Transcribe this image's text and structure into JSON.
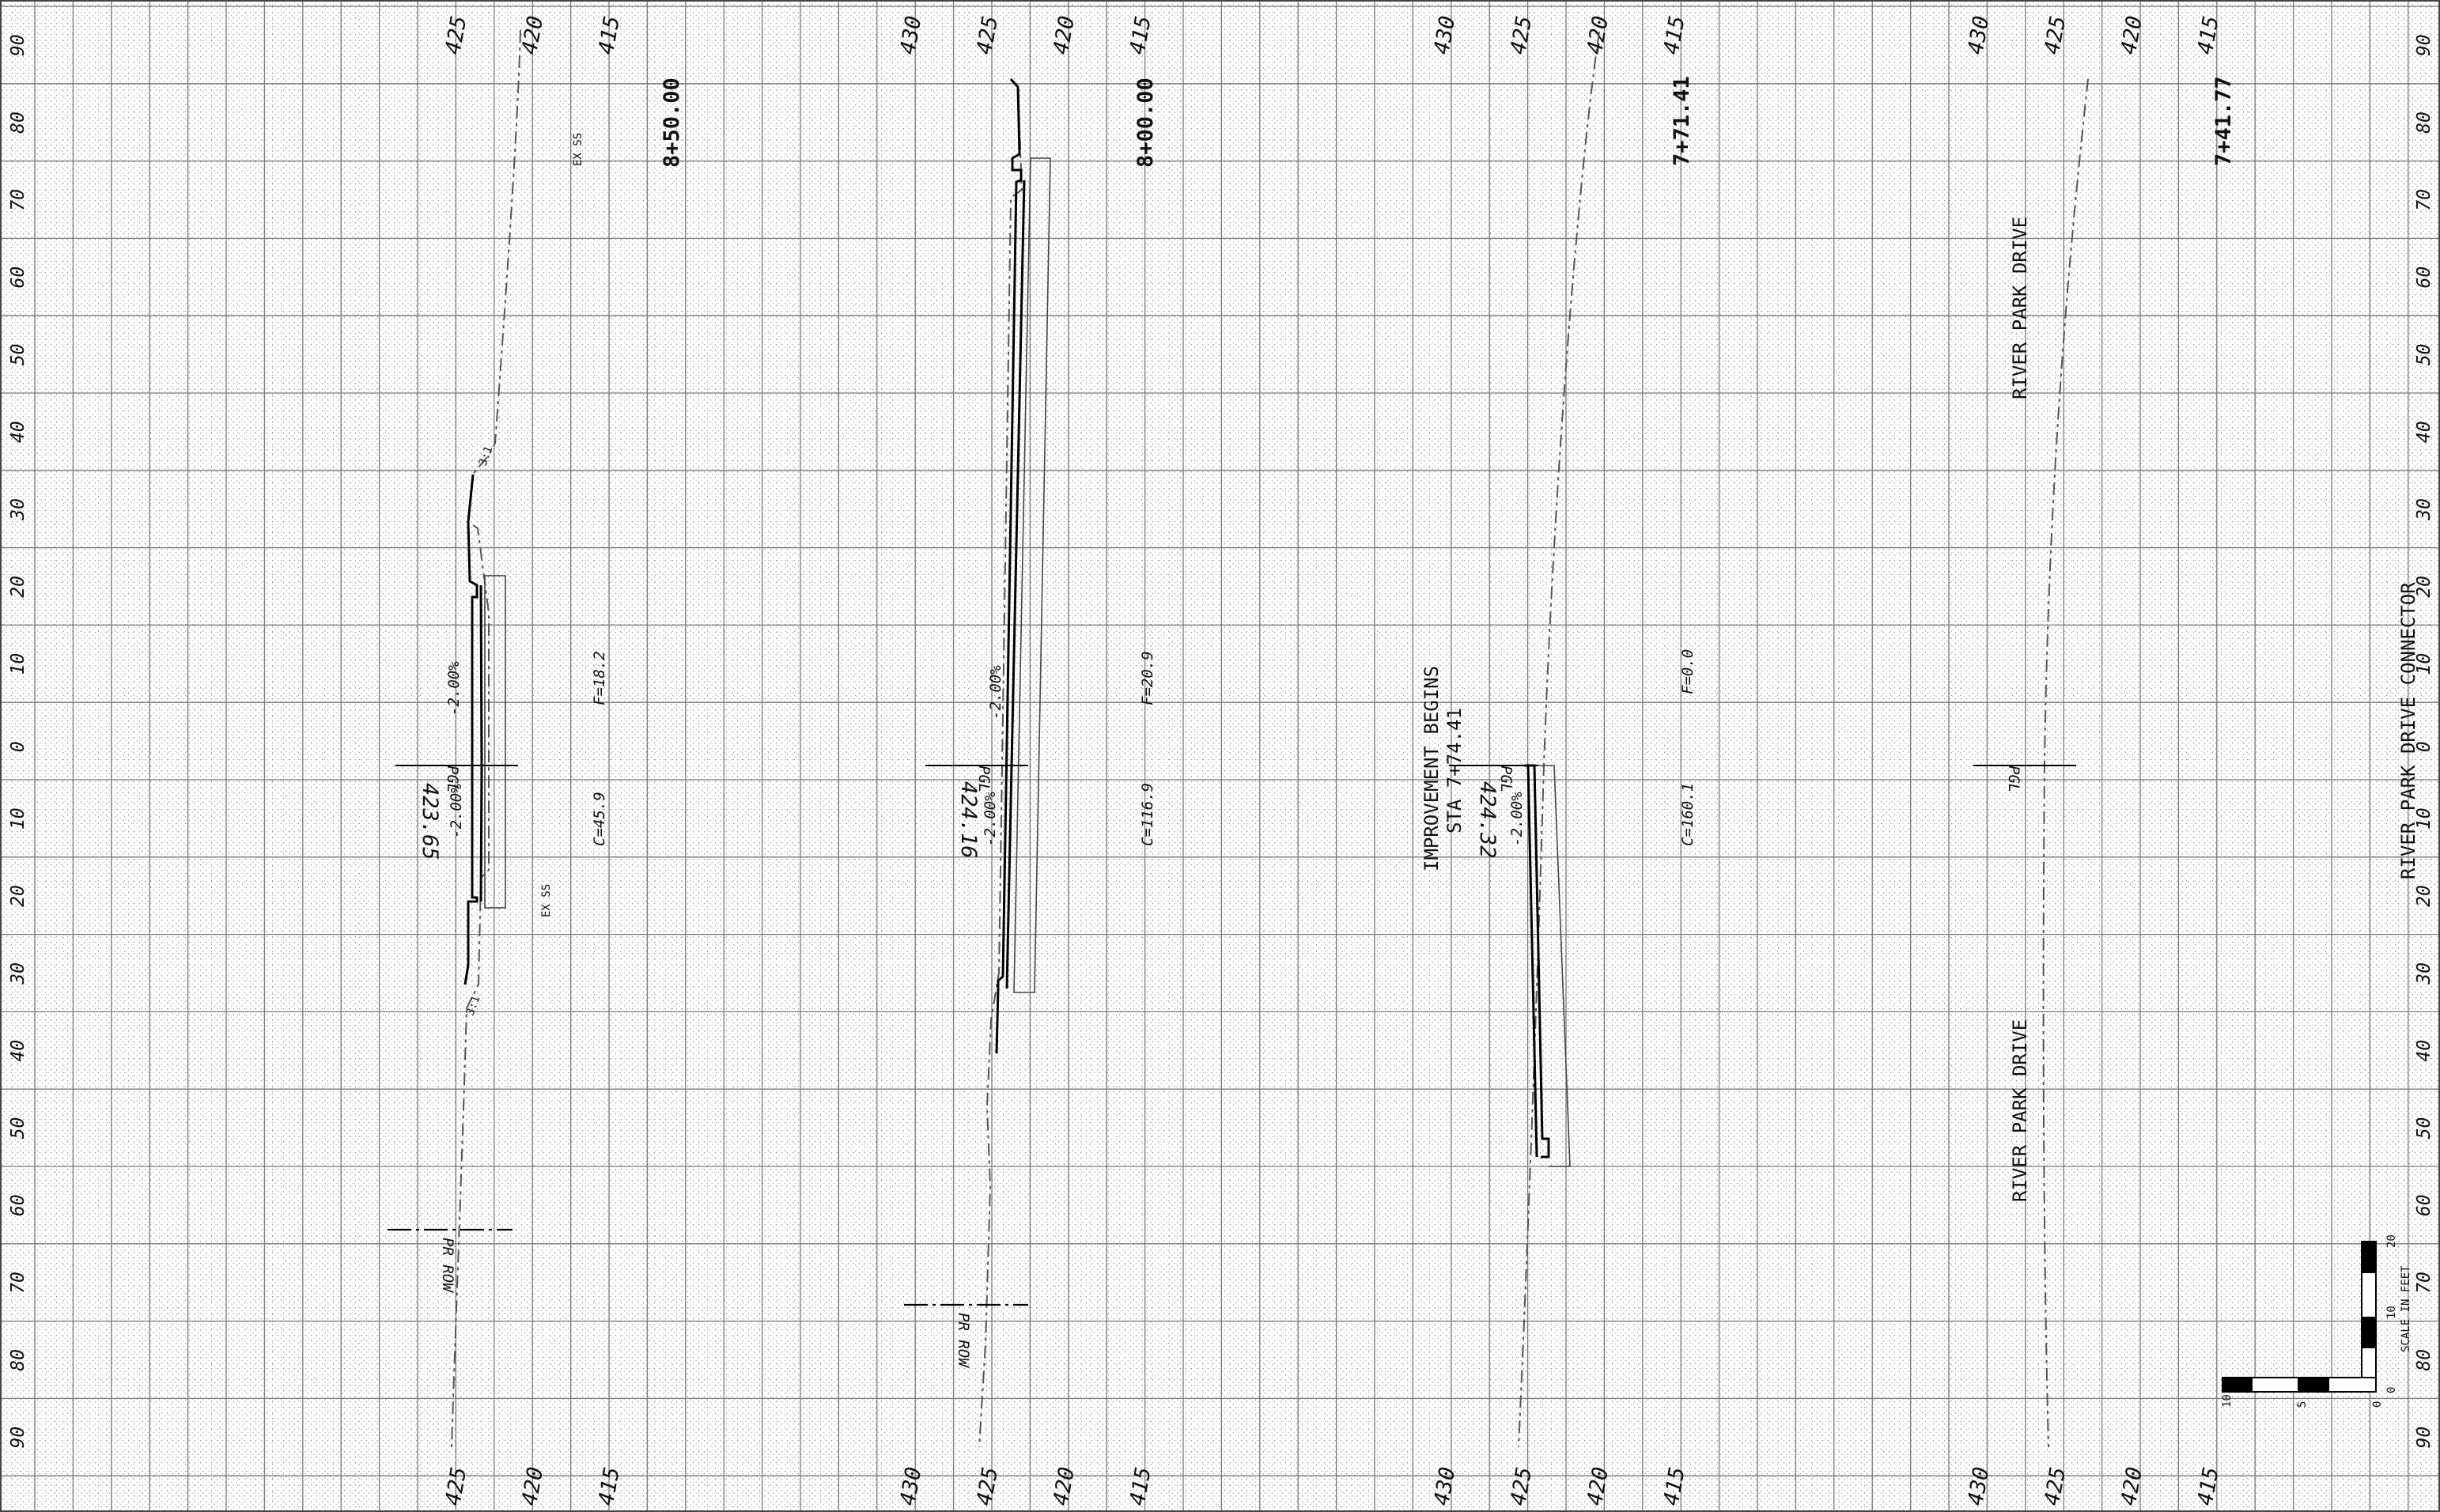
{
  "sheet": {
    "offset_labels": [
      "90",
      "80",
      "70",
      "60",
      "50",
      "40",
      "30",
      "20",
      "10",
      "0",
      "10",
      "20",
      "30",
      "40",
      "50",
      "60",
      "70",
      "80",
      "90"
    ],
    "elevation_columns": [
      {
        "labels": [
          "425",
          "420",
          "415"
        ]
      },
      {
        "labels": [
          "430",
          "425",
          "420",
          "415"
        ]
      },
      {
        "labels": [
          "430",
          "425",
          "420",
          "415"
        ]
      },
      {
        "labels": [
          "430",
          "425",
          "420",
          "415"
        ]
      }
    ]
  },
  "sections": [
    {
      "station": "8+50.00",
      "pgl_elevation": "423.65",
      "pgl_label": "PGL",
      "left_slope": "-2.00%",
      "right_slope": "-2.00%",
      "cut": "C=45.9",
      "fill": "F=18.2",
      "ex_ss_label": "EX SS",
      "row_label": "PR ROW",
      "slope_tag_upper": "3:1",
      "slope_tag_lower": "3:1"
    },
    {
      "station": "8+00.00",
      "pgl_elevation": "424.16",
      "pgl_label": "PGL",
      "left_slope": "-2.00%",
      "right_slope": "-2.00%",
      "cut": "C=116.9",
      "fill": "F=20.9",
      "row_label": "PR ROW"
    },
    {
      "station": "7+71.41",
      "pgl_elevation": "424.32",
      "pgl_label": "PGL",
      "right_slope": "-2.00%",
      "cut": "C=160.1",
      "fill": "F=0.0",
      "note_line1": "IMPROVEMENT BEGINS",
      "note_line2": "STA 7+74.41"
    },
    {
      "station": "7+41.77",
      "pgl_label": "PGL",
      "road_label_upper": "RIVER PARK DRIVE",
      "road_label_lower": "RIVER PARK DRIVE"
    }
  ],
  "connector_label": "RIVER PARK DRIVE CONNECTOR",
  "scale_bar": {
    "label": "SCALE IN FEET",
    "vertical_ticks": [
      "0",
      "10",
      "20"
    ],
    "horizontal_ticks": [
      "0",
      "5",
      "10"
    ]
  }
}
